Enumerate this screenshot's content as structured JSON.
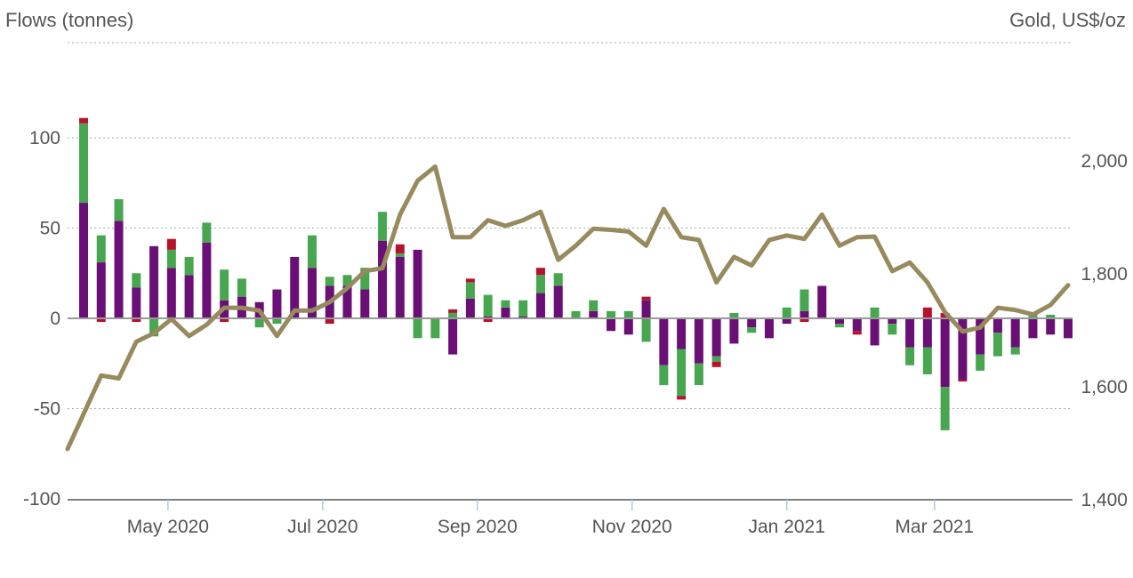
{
  "chart_data": {
    "type": "bar",
    "left_axis_title": "Flows (tonnes)",
    "right_axis_title": "Gold, US$/oz",
    "y_left": {
      "ticks": [
        100,
        50,
        0,
        -50,
        -100
      ],
      "tick_labels": [
        "100",
        "50",
        "0",
        "-50",
        "-100"
      ],
      "ylim": [
        -100,
        150
      ]
    },
    "y_right": {
      "ticks": [
        2000,
        1800,
        1600,
        1400
      ],
      "tick_labels": [
        "2,000",
        "1,800",
        "1,600",
        "1,400"
      ],
      "ylim": [
        1400,
        2200
      ]
    },
    "x_ticks": [
      {
        "label": "May 2020",
        "index": 4.8
      },
      {
        "label": "Jul 2020",
        "index": 13.6
      },
      {
        "label": "Sep 2020",
        "index": 22.4
      },
      {
        "label": "Nov 2020",
        "index": 31.2
      },
      {
        "label": "Jan 2021",
        "index": 40.0
      },
      {
        "label": "Mar 2021",
        "index": 48.4
      }
    ],
    "grid": true,
    "colors": {
      "purple": "#6a0f75",
      "green": "#48a651",
      "red": "#b5122e",
      "gold_line": "#978a5e",
      "grid": "#aaaaaa",
      "zero_line": "#999999"
    },
    "bar_series": [
      {
        "color": "purple",
        "values": [
          64,
          31,
          54,
          17,
          40,
          28,
          24,
          42,
          10,
          12,
          9,
          16,
          34,
          28,
          18,
          18,
          16,
          43,
          34,
          38,
          0,
          -20,
          11,
          1,
          6,
          1,
          14,
          18,
          0,
          4,
          -7,
          -9,
          10,
          -26,
          -17,
          -25,
          -21,
          -14,
          -5,
          -11,
          -3,
          4,
          18,
          -3,
          -7,
          -15,
          -3,
          -16,
          -16,
          -38,
          -34,
          -20,
          -8,
          -16,
          -11,
          -9,
          -11
        ]
      },
      {
        "color": "green",
        "values": [
          44,
          15,
          12,
          8,
          -10,
          10,
          10,
          11,
          17,
          10,
          -5,
          -3,
          0,
          18,
          5,
          6,
          12,
          16,
          2,
          -11,
          -11,
          3,
          9,
          12,
          4,
          9,
          10,
          7,
          4,
          6,
          4,
          4,
          -13,
          -11,
          -26,
          -12,
          -3,
          3,
          -3,
          0,
          6,
          12,
          0,
          -2,
          0,
          6,
          -6,
          -10,
          -15,
          -24,
          0,
          -9,
          -13,
          -4,
          3,
          2,
          0
        ]
      },
      {
        "color": "red",
        "values": [
          3,
          -2,
          0,
          -2,
          0,
          6,
          0,
          0,
          -2,
          0,
          0,
          0,
          0,
          0,
          -3,
          0,
          0,
          0,
          5,
          0,
          0,
          2,
          2,
          -2,
          0,
          0,
          4,
          0,
          0,
          0,
          0,
          0,
          2,
          0,
          -2,
          0,
          -3,
          0,
          0,
          0,
          0,
          -2,
          0,
          0,
          -2,
          0,
          0,
          0,
          6,
          3,
          -1,
          0,
          0,
          0,
          0,
          0,
          0
        ]
      }
    ],
    "gold_price": [
      1490,
      1620,
      1615,
      1680,
      1695,
      1720,
      1690,
      1710,
      1740,
      1740,
      1735,
      1690,
      1735,
      1735,
      1750,
      1775,
      1805,
      1810,
      1905,
      1965,
      1990,
      1865,
      1865,
      1895,
      1885,
      1895,
      1910,
      1825,
      1850,
      1880,
      1878,
      1875,
      1850,
      1915,
      1865,
      1860,
      1785,
      1830,
      1815,
      1860,
      1868,
      1862,
      1905,
      1850,
      1865,
      1866,
      1805,
      1820,
      1785,
      1732,
      1698,
      1705,
      1740,
      1736,
      1728,
      1745,
      1780
    ]
  }
}
